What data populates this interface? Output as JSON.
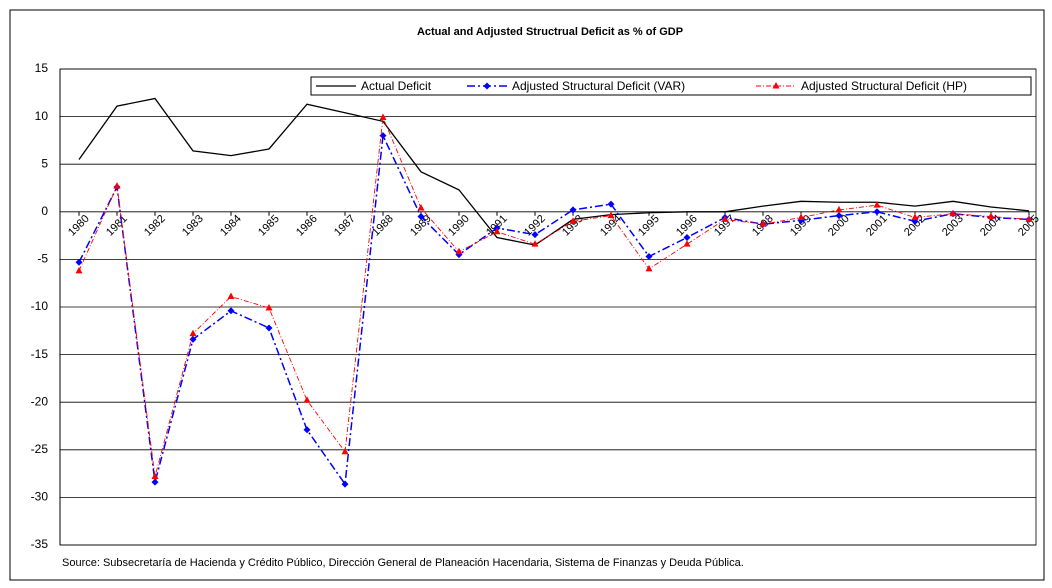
{
  "chart_data": {
    "type": "line",
    "title": "Actual and Adjusted Structrual Deficit as % of GDP",
    "source": "Source: Subsecretaría de Hacienda y Crédito Público, Dirección General de Planeación Hacendaria, Sistema de Finanzas y Deuda Pública.",
    "categories": [
      "1980",
      "1981",
      "1982",
      "1983",
      "1984",
      "1985",
      "1986",
      "1987",
      "1988",
      "1989",
      "1990",
      "1991",
      "1992",
      "1993",
      "1994",
      "1995",
      "1996",
      "1997",
      "1998",
      "1999",
      "2000",
      "2001",
      "2002",
      "2003",
      "2004",
      "2005"
    ],
    "series": [
      {
        "name": "Actual Deficit",
        "color": "#000000",
        "marker": "none",
        "values": [
          5.5,
          11.1,
          11.9,
          6.4,
          5.9,
          6.6,
          11.3,
          10.4,
          9.5,
          4.2,
          2.3,
          -2.7,
          -3.5,
          -0.8,
          -0.3,
          -0.1,
          0.0,
          0.0,
          0.6,
          1.1,
          1.0,
          1.0,
          0.6,
          1.1,
          0.5,
          0.1
        ]
      },
      {
        "name": "Adjusted Structural Deficit (VAR)",
        "color": "#0000ff",
        "marker": "diamond",
        "values": [
          -5.3,
          2.6,
          -28.4,
          -13.4,
          -10.4,
          -12.2,
          -22.9,
          -28.6,
          8.0,
          -0.5,
          -4.5,
          -1.7,
          -2.4,
          0.2,
          0.8,
          -4.7,
          -2.7,
          -0.6,
          -1.3,
          -0.9,
          -0.4,
          0.0,
          -1.0,
          -0.2,
          -0.6,
          -0.8
        ]
      },
      {
        "name": "Adjusted Structural Deficit (HP)",
        "color": "#ff0000",
        "marker": "triangle",
        "values": [
          -6.2,
          2.7,
          -27.8,
          -12.8,
          -8.9,
          -10.1,
          -19.8,
          -25.2,
          9.9,
          0.4,
          -4.2,
          -2.1,
          -3.4,
          -1.0,
          -0.4,
          -6.0,
          -3.4,
          -0.8,
          -1.3,
          -0.6,
          0.2,
          0.7,
          -0.6,
          -0.2,
          -0.5,
          -0.8
        ]
      }
    ],
    "ylim": [
      -35,
      15
    ],
    "yticks": [
      -35,
      -30,
      -25,
      -20,
      -15,
      -10,
      -5,
      0,
      5,
      10,
      15
    ],
    "grid": true
  }
}
